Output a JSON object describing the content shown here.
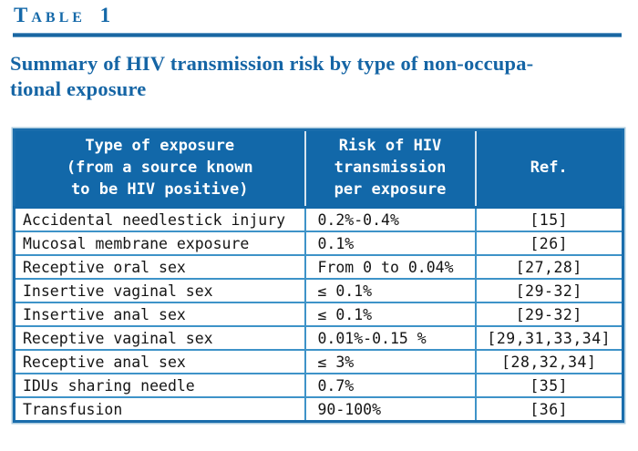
{
  "colors": {
    "accent_blue": "#1268a9",
    "separator_light_blue": "#3e93c8",
    "title_blue": "#1565a5"
  },
  "table_label": "Table 1",
  "title_line1": "Summary of HIV transmission risk by type of non-occupa-",
  "title_line2": "tional exposure",
  "table": {
    "col_headers": [
      "Type of exposure\n(from a source known\nto be HIV positive)",
      "Risk of HIV\ntransmission\nper exposure",
      "Ref."
    ],
    "rows": [
      {
        "exposure": "Accidental needlestick injury",
        "risk": "0.2%-0.4%",
        "ref": "[15]"
      },
      {
        "exposure": "Mucosal membrane exposure",
        "risk": "0.1%",
        "ref": "[26]"
      },
      {
        "exposure": "Receptive oral sex",
        "risk": "From 0 to 0.04%",
        "ref": "[27,28]"
      },
      {
        "exposure": "Insertive vaginal sex",
        "risk": "≤ 0.1%",
        "ref": "[29-32]"
      },
      {
        "exposure": "Insertive anal sex",
        "risk": "≤ 0.1%",
        "ref": "[29-32]"
      },
      {
        "exposure": "Receptive vaginal sex",
        "risk": "0.01%-0.15 %",
        "ref": "[29,31,33,34]"
      },
      {
        "exposure": "Receptive anal sex",
        "risk": "≤ 3%",
        "ref": "[28,32,34]"
      },
      {
        "exposure": "IDUs sharing needle",
        "risk": "0.7%",
        "ref": "[35]"
      },
      {
        "exposure": "Transfusion",
        "risk": "90-100%",
        "ref": "[36]"
      }
    ]
  }
}
